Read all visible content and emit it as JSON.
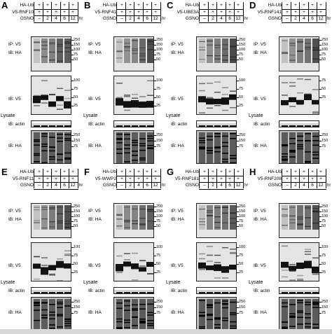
{
  "figure": {
    "row_labels": [
      "HA-Ub",
      "GSNO"
    ],
    "time_unit": "hr",
    "gsno_values": [
      "–",
      "2",
      "4",
      "6",
      "12"
    ],
    "plus": "+",
    "labels": {
      "ip_v5": "IP: V5",
      "ib_ha": "IB: HA",
      "ib_v5": "IB: V5",
      "lysate": "Lysate",
      "ib_actin": "IB: actin"
    },
    "panels": [
      {
        "letter": "A",
        "construct": "V5-RNF10",
        "mw_top": [
          "250",
          "150",
          "100",
          "75",
          "50"
        ],
        "mw_v5": [
          "100",
          "75",
          "50",
          "25"
        ],
        "mw_ha": [
          "250",
          "150",
          "75"
        ]
      },
      {
        "letter": "B",
        "construct": "V5-RNF41",
        "mw_top": [
          "250",
          "150",
          "100",
          "75",
          "50"
        ],
        "mw_v5": [
          "100",
          "75",
          "50",
          "25"
        ],
        "mw_ha": [
          "250",
          "150",
          "75"
        ]
      },
      {
        "letter": "C",
        "construct": "V5-UBE3A",
        "mw_top": [
          "250",
          "150",
          "100",
          "75",
          "50"
        ],
        "mw_v5": [
          "100",
          "75",
          "50",
          "25"
        ],
        "mw_ha": [
          "250",
          "150",
          "75"
        ]
      },
      {
        "letter": "D",
        "construct": "V5-RNF141",
        "mw_top": [
          "250",
          "150",
          "100",
          "75",
          "50"
        ],
        "mw_v5": [
          "75",
          "50",
          "25"
        ],
        "mw_ha": [
          "250",
          "150",
          "75"
        ]
      },
      {
        "letter": "E",
        "construct": "V5-RNF11",
        "mw_top": [
          "250",
          "150",
          "100",
          "75",
          "50"
        ],
        "mw_v5": [
          "100",
          "75",
          "50",
          "25"
        ],
        "mw_ha": [
          "250",
          "150",
          "75"
        ]
      },
      {
        "letter": "F",
        "construct": "V5-WWP2",
        "mw_top": [
          "250",
          "150",
          "100",
          "75",
          "50"
        ],
        "mw_v5": [
          "100",
          "75",
          "50",
          "25"
        ],
        "mw_ha": [
          "250",
          "150",
          "75"
        ]
      },
      {
        "letter": "G",
        "construct": "V5-RNF181",
        "mw_top": [
          "250",
          "150",
          "100",
          "75",
          "50"
        ],
        "mw_v5": [
          "100",
          "75",
          "50",
          "25"
        ],
        "mw_ha": [
          "250",
          "150",
          "75"
        ]
      },
      {
        "letter": "H",
        "construct": "V5-RNF208",
        "mw_top": [
          "250",
          "150",
          "100",
          "75",
          "50"
        ],
        "mw_v5": [
          "100",
          "75",
          "50",
          "25"
        ],
        "mw_ha": [
          "250",
          "150",
          "75"
        ]
      }
    ]
  }
}
